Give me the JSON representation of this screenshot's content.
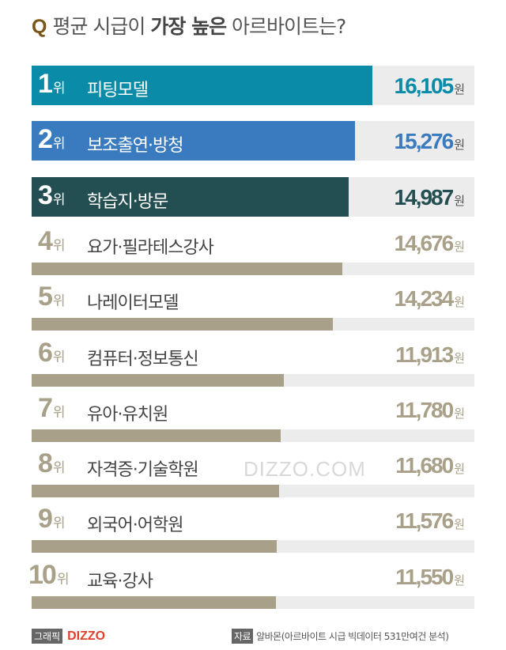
{
  "title": {
    "q": "Q",
    "pre": "평균 시급이 ",
    "bold": "가장 높은",
    "post": " 아르바이트는?"
  },
  "chart_data": {
    "type": "bar",
    "orientation": "horizontal",
    "rank_suffix": "위",
    "unit": "원",
    "categories": [
      "피팅모델",
      "보조출연·방청",
      "학습지·방문",
      "요가·필라테스강사",
      "나레이터모델",
      "컴퓨터·정보통신",
      "유아·유치원",
      "자격증·기술학원",
      "외국어·어학원",
      "교육·강사"
    ],
    "ranks": [
      1,
      2,
      3,
      4,
      5,
      6,
      7,
      8,
      9,
      10
    ],
    "values": [
      16105,
      15276,
      14987,
      14676,
      14234,
      11913,
      11780,
      11680,
      11576,
      11550
    ],
    "value_labels": [
      "16,105",
      "15,276",
      "14,987",
      "14,676",
      "14,234",
      "11,913",
      "11,780",
      "11,680",
      "11,576",
      "11,550"
    ],
    "colors": [
      "#0a8ba8",
      "#3a7bbf",
      "#234f52",
      "#a8a088",
      "#a8a088",
      "#a8a088",
      "#a8a088",
      "#a8a088",
      "#a8a088",
      "#a8a088"
    ],
    "track_color": "#ececec"
  },
  "watermark": "DIZZO.COM",
  "footer": {
    "graphic_tag": "그래픽",
    "logo": "DIZZO",
    "source_tag": "자료",
    "source": "알바몬(아르바이트 시급 빅데이터 531만여건 분석)"
  }
}
